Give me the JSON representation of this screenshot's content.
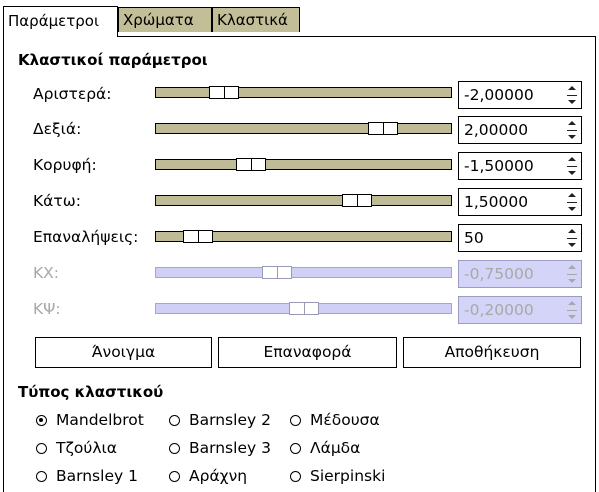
{
  "tabs": [
    {
      "label": "Παράμετροι",
      "active": true
    },
    {
      "label": "Χρώματα",
      "active": false
    },
    {
      "label": "Κλαστικά",
      "active": false
    }
  ],
  "params_title": "Κλαστικοί παράμετροι",
  "params": [
    {
      "label": "Αριστερά:",
      "value": "-2,00000",
      "slider_fraction": 0.2,
      "enabled": true
    },
    {
      "label": "Δεξιά:",
      "value": "2,00000",
      "slider_fraction": 0.8,
      "enabled": true
    },
    {
      "label": "Κορυφή:",
      "value": "-1,50000",
      "slider_fraction": 0.3,
      "enabled": true
    },
    {
      "label": "Κάτω:",
      "value": "1,50000",
      "slider_fraction": 0.7,
      "enabled": true
    },
    {
      "label": "Επαναλήψεις:",
      "value": "50",
      "slider_fraction": 0.1,
      "enabled": true
    },
    {
      "label": "ΚΧ:",
      "value": "-0,75000",
      "slider_fraction": 0.4,
      "enabled": false
    },
    {
      "label": "ΚΨ:",
      "value": "-0,20000",
      "slider_fraction": 0.5,
      "enabled": false
    }
  ],
  "buttons": {
    "open": "Άνοιγμα",
    "reset": "Επαναφορά",
    "save": "Αποθήκευση"
  },
  "type_title": "Τύπος κλαστικού",
  "fractal_types": [
    {
      "label": "Mandelbrot",
      "checked": true
    },
    {
      "label": "Barnsley 2",
      "checked": false
    },
    {
      "label": "Μέδουσα",
      "checked": false
    },
    {
      "label": "Τζούλια",
      "checked": false
    },
    {
      "label": "Barnsley 3",
      "checked": false
    },
    {
      "label": "Λάμδα",
      "checked": false
    },
    {
      "label": "Barnsley 1",
      "checked": false
    },
    {
      "label": "Αράχνη",
      "checked": false
    },
    {
      "label": "Sierpinski",
      "checked": false
    }
  ],
  "colors": {
    "track": "#bfbb96",
    "tab_inactive": "#c2be98",
    "disabled_fill": "#d0d0f6"
  }
}
